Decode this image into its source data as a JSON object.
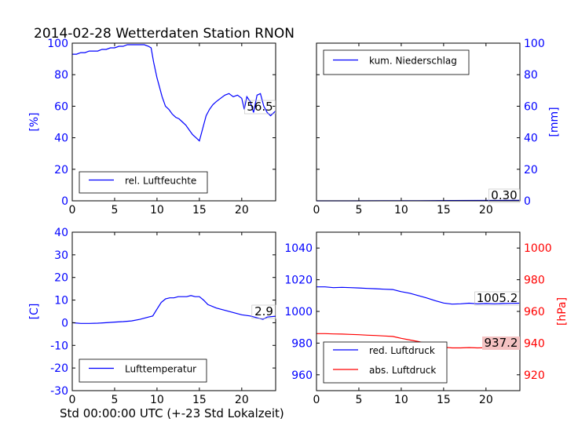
{
  "figure": {
    "title": "2014-02-28 Wetterdaten Station RNON",
    "xlabel": "Std 00:00:00 UTC (+-23 Std Lokalzeit)"
  },
  "colors": {
    "blue": "#0000ff",
    "red": "#ff0000",
    "axis": "#000000",
    "legend_border": "#000000",
    "label_box_red": "#f4c2c2"
  },
  "chart_data": [
    {
      "type": "line",
      "panel": "top-left",
      "ylabel": "[%]",
      "xlim": [
        0,
        24
      ],
      "ylim": [
        0,
        100
      ],
      "xticks": [
        0,
        5,
        10,
        15,
        20
      ],
      "yticks": [
        0,
        20,
        40,
        60,
        80,
        100
      ],
      "legend": {
        "placement": "lower-left",
        "entries": [
          "rel. Luftfeuchte"
        ]
      },
      "value_label": "56.5",
      "series": [
        {
          "name": "rel. Luftfeuchte",
          "color": "#0000ff",
          "x": [
            0,
            0.5,
            1,
            1.5,
            2,
            2.5,
            3,
            3.5,
            4,
            4.5,
            5,
            5.5,
            6,
            6.5,
            7,
            7.5,
            8,
            8.5,
            9,
            9.3,
            9.6,
            10,
            10.3,
            10.6,
            11,
            11.4,
            11.8,
            12.2,
            12.6,
            13,
            13.4,
            13.8,
            14.2,
            14.6,
            15,
            15.4,
            15.8,
            16.2,
            16.6,
            17,
            17.5,
            18,
            18.5,
            19,
            19.5,
            20,
            20.3,
            20.6,
            21,
            21.4,
            21.8,
            22.2,
            22.6,
            23,
            23.4,
            24
          ],
          "y": [
            93,
            93,
            94,
            94,
            95,
            95,
            95,
            96,
            96,
            97,
            97,
            98,
            98,
            99,
            99,
            99,
            99,
            99,
            98,
            97,
            88,
            78,
            72,
            66,
            60,
            58,
            55,
            53,
            52,
            50,
            48,
            45,
            42,
            40,
            38,
            46,
            54,
            58,
            61,
            63,
            65,
            67,
            68,
            66,
            67,
            65,
            58,
            66,
            63,
            56,
            67,
            68,
            60,
            56,
            54,
            57
          ]
        }
      ]
    },
    {
      "type": "line",
      "panel": "top-right",
      "ylabel": "[mm]",
      "xlim": [
        0,
        24
      ],
      "ylim": [
        0,
        100
      ],
      "xticks": [
        0,
        5,
        10,
        15,
        20
      ],
      "yticks": [
        0,
        20,
        40,
        60,
        80,
        100
      ],
      "legend": {
        "placement": "top-left",
        "entries": [
          "kum. Niederschlag"
        ]
      },
      "value_label": "0.30",
      "series": [
        {
          "name": "kum. Niederschlag",
          "color": "#0000ff",
          "x": [
            0,
            4,
            8,
            12,
            16,
            20,
            24
          ],
          "y": [
            0,
            0.02,
            0.05,
            0.1,
            0.18,
            0.25,
            0.3
          ]
        }
      ]
    },
    {
      "type": "line",
      "panel": "bottom-left",
      "ylabel": "[C]",
      "xlim": [
        0,
        24
      ],
      "ylim": [
        -30,
        40
      ],
      "xticks": [
        0,
        5,
        10,
        15,
        20
      ],
      "yticks": [
        -30,
        -20,
        -10,
        0,
        10,
        20,
        30,
        40
      ],
      "legend": {
        "placement": "lower-left",
        "entries": [
          "Lufttemperatur"
        ]
      },
      "value_label": "2.9",
      "series": [
        {
          "name": "Lufttemperatur",
          "color": "#0000ff",
          "x": [
            0,
            1,
            2,
            3,
            4,
            5,
            6,
            7,
            8,
            9,
            9.5,
            10,
            10.5,
            11,
            11.5,
            12,
            12.5,
            13,
            13.5,
            14,
            14.5,
            15,
            15.5,
            16,
            17,
            18,
            19,
            20,
            21,
            22,
            22.5,
            23,
            24
          ],
          "y": [
            0,
            -0.3,
            -0.3,
            -0.2,
            0,
            0.3,
            0.5,
            0.8,
            1.5,
            2.5,
            3,
            6,
            9,
            10.5,
            11,
            11,
            11.5,
            11.5,
            11.5,
            12,
            11.5,
            11.5,
            10,
            8,
            6.5,
            5.5,
            4.5,
            3.5,
            3,
            2,
            1.5,
            2.5,
            2.9
          ]
        }
      ]
    },
    {
      "type": "line",
      "panel": "bottom-right",
      "ylabel_right": "[hPa]",
      "xlim": [
        0,
        24
      ],
      "ylim": [
        950,
        1050
      ],
      "ylim_right": [
        910,
        1010
      ],
      "xticks": [
        0,
        5,
        10,
        15,
        20
      ],
      "yticks": [
        960,
        980,
        1000,
        1020,
        1040
      ],
      "yticks_right": [
        920,
        940,
        960,
        980,
        1000
      ],
      "legend": {
        "placement": "lower-left",
        "entries": [
          "red. Luftdruck",
          "abs. Luftdruck"
        ]
      },
      "value_labels": [
        "1005.2",
        "937.2"
      ],
      "series": [
        {
          "name": "red. Luftdruck",
          "color": "#0000ff",
          "axis": "left",
          "x": [
            0,
            1,
            2,
            3,
            4,
            5,
            6,
            7,
            8,
            9,
            10,
            11,
            12,
            13,
            14,
            15,
            16,
            17,
            18,
            19,
            20,
            21,
            22,
            23,
            24
          ],
          "y": [
            1015.5,
            1015.5,
            1015,
            1015.2,
            1015,
            1014.8,
            1014.5,
            1014.3,
            1014,
            1013.8,
            1012.5,
            1011.5,
            1010,
            1008.5,
            1006.8,
            1005.3,
            1004.6,
            1004.8,
            1005.2,
            1004.8,
            1005,
            1004.8,
            1005,
            1005.1,
            1005.2
          ]
        },
        {
          "name": "abs. Luftdruck",
          "color": "#ff0000",
          "axis": "right",
          "x": [
            0,
            1,
            2,
            3,
            4,
            5,
            6,
            7,
            8,
            9,
            10,
            11,
            12,
            13,
            14,
            15,
            16,
            17,
            18,
            19,
            20,
            21,
            22,
            23,
            24
          ],
          "y": [
            946,
            946,
            945.8,
            945.7,
            945.5,
            945.3,
            945,
            944.8,
            944.5,
            944.2,
            943,
            942,
            941,
            939.8,
            938.5,
            937.4,
            937,
            937,
            937.2,
            937,
            937.1,
            937,
            937.2,
            937.1,
            937.2
          ]
        }
      ]
    }
  ]
}
